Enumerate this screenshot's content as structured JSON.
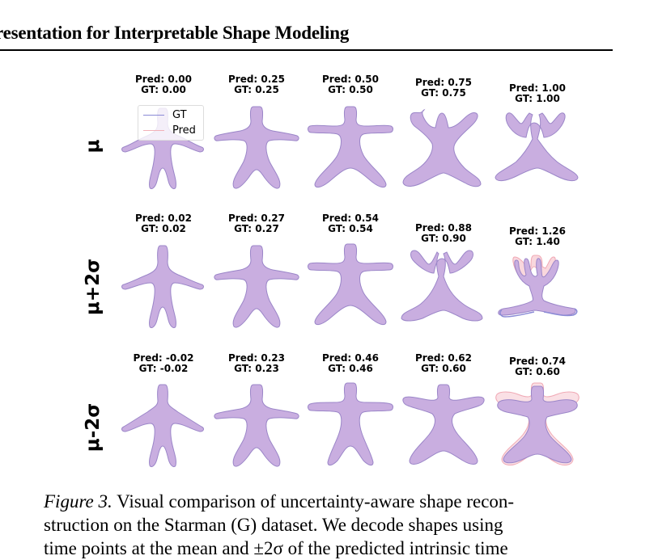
{
  "header": {
    "title": "resentation for Interpretable Shape Modeling"
  },
  "legend": {
    "gt_label": "GT",
    "pred_label": "Pred",
    "gt_color": "#8a8ad6",
    "pred_color": "#f2b0b8"
  },
  "colors": {
    "shape_fill": "#c9aee0",
    "shape_stroke": "#9b86c8"
  },
  "rows": [
    {
      "label": "μ",
      "cells": [
        {
          "pred": "Pred: 0.00",
          "gt": "GT: 0.00"
        },
        {
          "pred": "Pred: 0.25",
          "gt": "GT: 0.25"
        },
        {
          "pred": "Pred: 0.50",
          "gt": "GT: 0.50"
        },
        {
          "pred": "Pred: 0.75",
          "gt": "GT: 0.75"
        },
        {
          "pred": "Pred: 1.00",
          "gt": "GT: 1.00"
        }
      ]
    },
    {
      "label": "μ+2σ",
      "cells": [
        {
          "pred": "Pred: 0.02",
          "gt": "GT: 0.02"
        },
        {
          "pred": "Pred: 0.27",
          "gt": "GT: 0.27"
        },
        {
          "pred": "Pred: 0.54",
          "gt": "GT: 0.54"
        },
        {
          "pred": "Pred: 0.88",
          "gt": "GT: 0.90"
        },
        {
          "pred": "Pred: 1.26",
          "gt": "GT: 1.40"
        }
      ]
    },
    {
      "label": "μ-2σ",
      "cells": [
        {
          "pred": "Pred: -0.02",
          "gt": "GT: -0.02"
        },
        {
          "pred": "Pred: 0.23",
          "gt": "GT: 0.23"
        },
        {
          "pred": "Pred: 0.46",
          "gt": "GT: 0.46"
        },
        {
          "pred": "Pred: 0.62",
          "gt": "GT: 0.60"
        },
        {
          "pred": "Pred: 0.74",
          "gt": "GT: 0.60"
        }
      ]
    }
  ],
  "caption": {
    "fig_label": "Figure 3.",
    "line1": "Visual comparison of uncertainty-aware shape recon-",
    "line2": "struction on the Starman (G) dataset. We decode shapes using",
    "line3": "time points at the mean and ±2σ of the predicted intrinsic time"
  }
}
